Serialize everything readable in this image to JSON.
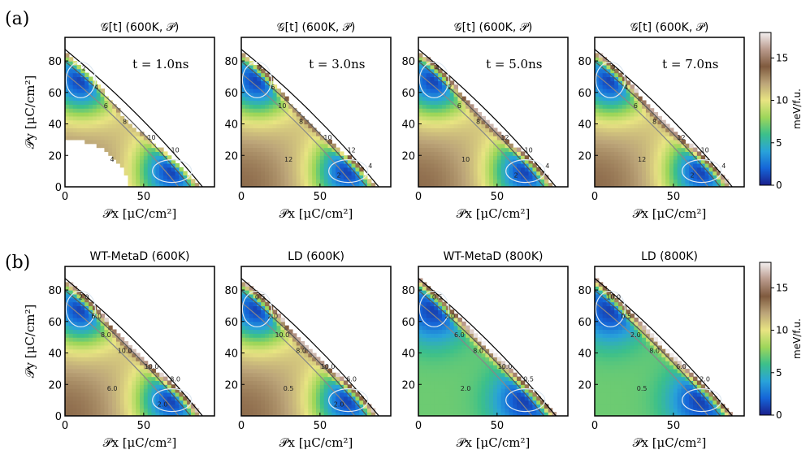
{
  "panel_labels": [
    "(a)",
    "(b)"
  ],
  "colorbar": {
    "unit": "meV/f.u.",
    "ticks": [
      0,
      5,
      10,
      15
    ],
    "range": [
      0,
      18
    ],
    "colors": [
      "#1a1f8c",
      "#1565d8",
      "#29a3d9",
      "#3cc08a",
      "#9ed65a",
      "#e8e482",
      "#bca579",
      "#7f5a3e",
      "#b99a8c",
      "#f4f0f1"
    ]
  },
  "chart_data": [
    {
      "type": "heatmap",
      "row": "a",
      "title": "𝒢[t] (600K, 𝒫)",
      "annotation": "t = 1.0ns",
      "xlabel": "𝒫x [μC/cm²]",
      "ylabel": "𝒫y [μC/cm²]",
      "xlim": [
        0,
        95
      ],
      "ylim": [
        0,
        95
      ],
      "xticks": [
        0,
        50
      ],
      "yticks": [
        0,
        20,
        40,
        60,
        80
      ],
      "zlim": [
        0,
        18
      ],
      "cutoff": 12.5,
      "contour_labels": [
        "2",
        "4",
        "6",
        "8",
        "10",
        "10",
        "4"
      ]
    },
    {
      "type": "heatmap",
      "row": "a",
      "title": "𝒢[t] (600K, 𝒫)",
      "annotation": "t = 3.0ns",
      "xlabel": "𝒫x [μC/cm²]",
      "ylabel": "",
      "xlim": [
        0,
        95
      ],
      "ylim": [
        0,
        95
      ],
      "xticks": [
        0,
        50
      ],
      "yticks": [
        20,
        40,
        60,
        80
      ],
      "zlim": [
        0,
        18
      ],
      "cutoff": 14.5,
      "contour_labels": [
        "2",
        "6",
        "10",
        "8",
        "10",
        "12",
        "12",
        "2",
        "4"
      ]
    },
    {
      "type": "heatmap",
      "row": "a",
      "title": "𝒢[t] (600K, 𝒫)",
      "annotation": "t = 5.0ns",
      "xlabel": "𝒫x [μC/cm²]",
      "ylabel": "",
      "xlim": [
        0,
        95
      ],
      "ylim": [
        0,
        95
      ],
      "xticks": [
        0,
        50
      ],
      "yticks": [
        20,
        40,
        60,
        80
      ],
      "zlim": [
        0,
        18
      ],
      "cutoff": 17,
      "contour_labels": [
        "4",
        "2",
        "6",
        "8",
        "12",
        "10",
        "10",
        "2",
        "4"
      ]
    },
    {
      "type": "heatmap",
      "row": "a",
      "title": "𝒢[t] (600K, 𝒫)",
      "annotation": "t = 7.0ns",
      "xlabel": "𝒫x [μC/cm²]",
      "ylabel": "",
      "xlim": [
        0,
        95
      ],
      "ylim": [
        0,
        95
      ],
      "xticks": [
        0,
        50
      ],
      "yticks": [
        20,
        40,
        60,
        80
      ],
      "zlim": [
        0,
        18
      ],
      "cutoff": 18,
      "contour_labels": [
        "2",
        "4",
        "6",
        "8",
        "12",
        "10",
        "12",
        "2",
        "4"
      ]
    },
    {
      "type": "heatmap",
      "row": "b",
      "title": "WT-MetaD (600K)",
      "annotation": "",
      "xlabel": "𝒫x [μC/cm²]",
      "ylabel": "𝒫y [μC/cm²]",
      "xlim": [
        0,
        95
      ],
      "ylim": [
        0,
        95
      ],
      "xticks": [
        0,
        50
      ],
      "yticks": [
        0,
        20,
        40,
        60,
        80
      ],
      "zlim": [
        0,
        18
      ],
      "cutoff": 18,
      "contour_labels": [
        "2.0",
        "6.0",
        "8.0",
        "10.0",
        "10.0",
        "8.0",
        "6.0",
        "2.0"
      ]
    },
    {
      "type": "heatmap",
      "row": "b",
      "title": "LD (600K)",
      "annotation": "",
      "xlabel": "𝒫x [μC/cm²]",
      "ylabel": "",
      "xlim": [
        0,
        95
      ],
      "ylim": [
        0,
        95
      ],
      "xticks": [
        0,
        50
      ],
      "yticks": [
        20,
        40,
        60,
        80
      ],
      "zlim": [
        0,
        18
      ],
      "cutoff": 18,
      "contour_labels": [
        "0.5",
        "2.0",
        "10.0",
        "8.0",
        "10.0",
        "6.0",
        "0.5",
        "2.0"
      ]
    },
    {
      "type": "heatmap",
      "row": "b",
      "title": "WT-MetaD (800K)",
      "annotation": "",
      "xlabel": "𝒫x [μC/cm²]",
      "ylabel": "",
      "xlim": [
        0,
        95
      ],
      "ylim": [
        0,
        95
      ],
      "xticks": [
        0,
        50
      ],
      "yticks": [
        20,
        40,
        60,
        80
      ],
      "zlim": [
        0,
        18
      ],
      "cutoff": 18,
      "contour_labels": [
        "0.5",
        "2.0",
        "6.0",
        "8.0",
        "10.0",
        "0.5",
        "2.0"
      ]
    },
    {
      "type": "heatmap",
      "row": "b",
      "title": "LD (800K)",
      "annotation": "",
      "xlabel": "𝒫x [μC/cm²]",
      "ylabel": "",
      "xlim": [
        0,
        95
      ],
      "ylim": [
        0,
        95
      ],
      "xticks": [
        0,
        50
      ],
      "yticks": [
        20,
        40,
        60,
        80
      ],
      "zlim": [
        0,
        18
      ],
      "cutoff": 18,
      "contour_labels": [
        "10.0",
        "0.5",
        "2.0",
        "8.0",
        "6.0",
        "2.0",
        "0.5"
      ]
    }
  ]
}
